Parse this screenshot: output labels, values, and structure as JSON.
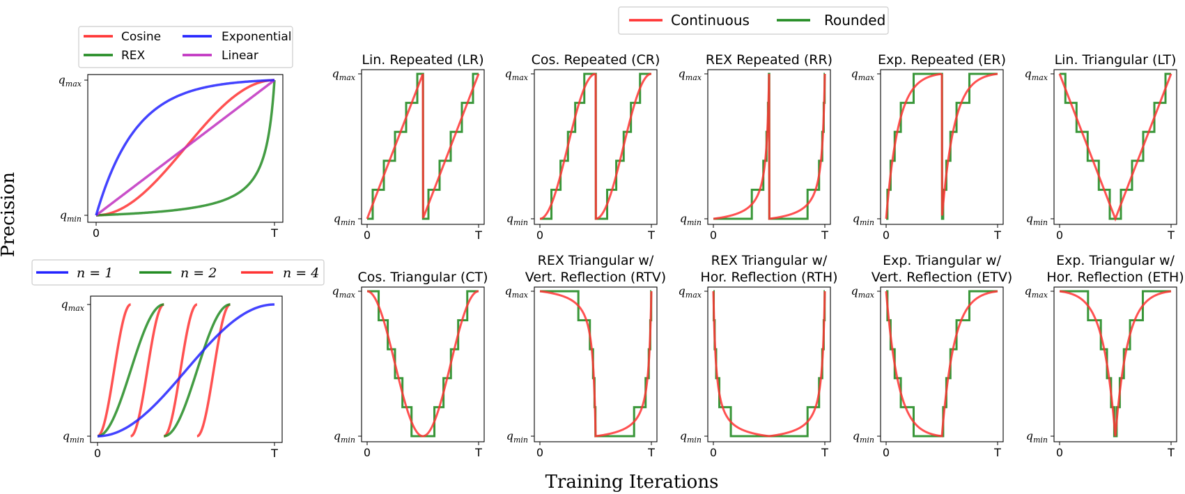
{
  "figure": {
    "ylabel": "Precision",
    "xlabel": "Training Iterations",
    "x_start_tick": "0",
    "x_end_tick": "T",
    "y_min_base": "q",
    "y_min_sub": "min",
    "y_max_base": "q",
    "y_max_sub": "max"
  },
  "legends": {
    "main": [
      {
        "label": "Continuous",
        "color": "#ff3333"
      },
      {
        "label": "Rounded",
        "color": "#228b22"
      }
    ],
    "schedules": [
      {
        "label": "Cosine",
        "color": "#ff3333"
      },
      {
        "label": "Exponential",
        "color": "#2222ff"
      },
      {
        "label": "REX",
        "color": "#228b22"
      },
      {
        "label": "Linear",
        "color": "#c030c0"
      }
    ],
    "cycles": [
      {
        "var": "n",
        "value": "1",
        "color": "#2222ff"
      },
      {
        "var": "n",
        "value": "2",
        "color": "#228b22"
      },
      {
        "var": "n",
        "value": "4",
        "color": "#ff3333"
      }
    ]
  },
  "chart_data": [
    {
      "id": "schedules",
      "type": "line",
      "title": "",
      "x": [
        0,
        1
      ],
      "xlim": [
        0,
        1
      ],
      "ylim": [
        0,
        1
      ],
      "series": [
        {
          "name": "Cosine",
          "color": "#ff3333",
          "kind": "cos"
        },
        {
          "name": "REX",
          "color": "#228b22",
          "kind": "rex"
        },
        {
          "name": "Linear",
          "color": "#c030c0",
          "kind": "lin"
        },
        {
          "name": "Exponential",
          "color": "#2222ff",
          "kind": "exp"
        }
      ]
    },
    {
      "id": "cycles",
      "type": "line",
      "title": "",
      "xlim": [
        0,
        1
      ],
      "ylim": [
        0,
        1
      ],
      "series": [
        {
          "name": "n = 1",
          "cycles": 1,
          "color": "#2222ff"
        },
        {
          "name": "n = 2",
          "cycles": 2,
          "color": "#228b22"
        },
        {
          "name": "n = 4",
          "cycles": 4,
          "color": "#ff3333"
        }
      ]
    },
    {
      "id": "LR",
      "type": "line",
      "title": [
        "Lin. Repeated (LR)"
      ],
      "kind": "lin",
      "mode": "repeated",
      "steps": 5
    },
    {
      "id": "CR",
      "type": "line",
      "title": [
        "Cos. Repeated (CR)"
      ],
      "kind": "cos",
      "mode": "repeated",
      "steps": 5
    },
    {
      "id": "RR",
      "type": "line",
      "title": [
        "REX Repeated (RR)"
      ],
      "kind": "rex",
      "mode": "repeated",
      "steps": 5
    },
    {
      "id": "ER",
      "type": "line",
      "title": [
        "Exp. Repeated (ER)"
      ],
      "kind": "exp",
      "mode": "repeated",
      "steps": 5
    },
    {
      "id": "LT",
      "type": "line",
      "title": [
        "Lin. Triangular (LT)"
      ],
      "kind": "lin",
      "mode": "tri",
      "steps": 5
    },
    {
      "id": "CT",
      "type": "line",
      "title": [
        "Cos. Triangular (CT)"
      ],
      "kind": "cos",
      "mode": "tri",
      "steps": 5
    },
    {
      "id": "RTV",
      "type": "line",
      "title": [
        "REX Triangular w/",
        "Vert. Reflection (RTV)"
      ],
      "kind": "rex",
      "mode": "vert",
      "steps": 5
    },
    {
      "id": "RTH",
      "type": "line",
      "title": [
        "REX Triangular w/",
        "Hor. Reflection (RTH)"
      ],
      "kind": "rex",
      "mode": "hor",
      "steps": 5
    },
    {
      "id": "ETV",
      "type": "line",
      "title": [
        "Exp. Triangular w/",
        "Vert. Reflection (ETV)"
      ],
      "kind": "exp",
      "mode": "vert",
      "steps": 5
    },
    {
      "id": "ETH",
      "type": "line",
      "title": [
        "Exp. Triangular w/",
        "Hor. Reflection (ETH)"
      ],
      "kind": "exp",
      "mode": "hor",
      "steps": 5
    }
  ]
}
